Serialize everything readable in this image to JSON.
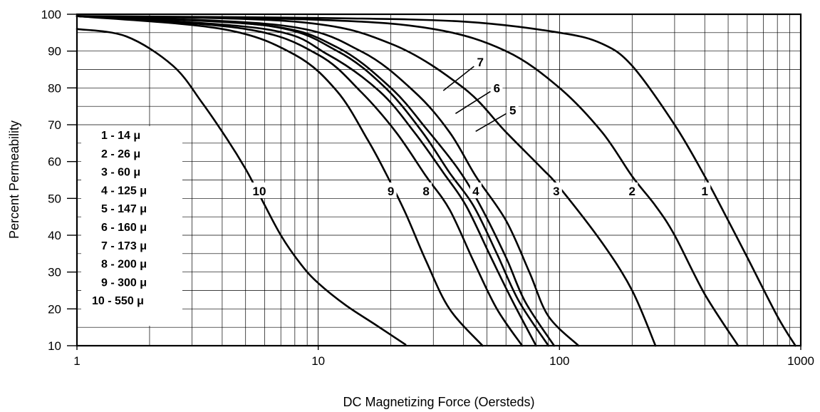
{
  "chart_data": {
    "type": "line",
    "title": "",
    "xlabel": "DC Magnetizing Force (Oersteds)",
    "ylabel": "Percent Permeability",
    "x_scale": "log",
    "xlim": [
      1,
      1000
    ],
    "ylim": [
      10,
      100
    ],
    "x_ticks": [
      "1",
      "10",
      "100",
      "1000"
    ],
    "y_ticks": [
      "10",
      "20",
      "30",
      "40",
      "50",
      "60",
      "70",
      "80",
      "90",
      "100"
    ],
    "grid": true,
    "legend_position": "left",
    "legend": [
      {
        "id": "1",
        "text": "1 - 14 μ"
      },
      {
        "id": "2",
        "text": "2 - 26 μ"
      },
      {
        "id": "3",
        "text": "3 - 60 μ"
      },
      {
        "id": "4",
        "text": "4 - 125 μ"
      },
      {
        "id": "5",
        "text": "5 - 147 μ"
      },
      {
        "id": "6",
        "text": "6 - 160 μ"
      },
      {
        "id": "7",
        "text": "7 - 173 μ"
      },
      {
        "id": "8",
        "text": "8 - 200 μ"
      },
      {
        "id": "9",
        "text": "9 - 300 μ"
      },
      {
        "id": "10",
        "text": "10 - 550 μ"
      }
    ],
    "series": [
      {
        "name": "1",
        "points": [
          [
            1,
            99.5
          ],
          [
            10,
            99
          ],
          [
            40,
            98
          ],
          [
            100,
            95
          ],
          [
            150,
            92
          ],
          [
            200,
            86
          ],
          [
            300,
            70
          ],
          [
            400,
            56
          ],
          [
            500,
            44
          ],
          [
            600,
            34
          ],
          [
            800,
            18
          ],
          [
            950,
            10
          ]
        ]
      },
      {
        "name": "2",
        "points": [
          [
            1,
            99.5
          ],
          [
            10,
            98.5
          ],
          [
            30,
            96
          ],
          [
            60,
            90
          ],
          [
            100,
            80
          ],
          [
            150,
            68
          ],
          [
            200,
            56
          ],
          [
            250,
            48
          ],
          [
            300,
            40
          ],
          [
            400,
            24
          ],
          [
            550,
            10
          ]
        ]
      },
      {
        "name": "3",
        "points": [
          [
            1,
            99.5
          ],
          [
            8,
            98
          ],
          [
            20,
            92
          ],
          [
            40,
            80
          ],
          [
            60,
            68
          ],
          [
            85,
            58
          ],
          [
            100,
            53
          ],
          [
            150,
            38
          ],
          [
            200,
            25
          ],
          [
            250,
            10
          ]
        ]
      },
      {
        "name": "4",
        "points": [
          [
            1,
            99.5
          ],
          [
            7,
            97
          ],
          [
            15,
            90
          ],
          [
            25,
            79
          ],
          [
            35,
            68
          ],
          [
            45,
            56
          ],
          [
            60,
            44
          ],
          [
            75,
            30
          ],
          [
            90,
            18
          ],
          [
            120,
            10
          ]
        ]
      },
      {
        "name": "5",
        "points": [
          [
            1,
            99.5
          ],
          [
            6,
            97
          ],
          [
            12,
            91
          ],
          [
            20,
            80
          ],
          [
            28,
            69
          ],
          [
            38,
            58
          ],
          [
            47,
            48
          ],
          [
            60,
            34
          ],
          [
            72,
            22
          ],
          [
            95,
            10
          ]
        ]
      },
      {
        "name": "6",
        "points": [
          [
            1,
            99.5
          ],
          [
            6,
            97
          ],
          [
            12,
            90
          ],
          [
            19,
            80
          ],
          [
            27,
            68
          ],
          [
            35,
            57
          ],
          [
            44,
            48
          ],
          [
            55,
            35
          ],
          [
            68,
            22
          ],
          [
            90,
            10
          ]
        ]
      },
      {
        "name": "7",
        "points": [
          [
            1,
            99.5
          ],
          [
            6,
            96
          ],
          [
            11,
            89
          ],
          [
            18,
            79
          ],
          [
            25,
            68
          ],
          [
            33,
            57
          ],
          [
            41,
            48
          ],
          [
            52,
            34
          ],
          [
            64,
            22
          ],
          [
            80,
            10
          ]
        ]
      },
      {
        "name": "8",
        "points": [
          [
            1,
            99.5
          ],
          [
            5,
            96
          ],
          [
            10,
            89
          ],
          [
            15,
            79
          ],
          [
            21,
            68
          ],
          [
            28,
            56
          ],
          [
            35,
            47
          ],
          [
            44,
            33
          ],
          [
            55,
            20
          ],
          [
            70,
            10
          ]
        ]
      },
      {
        "name": "9",
        "points": [
          [
            1,
            99.5
          ],
          [
            4,
            96
          ],
          [
            8,
            89
          ],
          [
            12,
            79
          ],
          [
            16,
            66
          ],
          [
            19,
            57
          ],
          [
            23,
            46
          ],
          [
            28,
            33
          ],
          [
            35,
            20
          ],
          [
            48,
            10
          ]
        ]
      },
      {
        "name": "10",
        "points": [
          [
            1,
            96
          ],
          [
            1.6,
            94
          ],
          [
            2.5,
            86
          ],
          [
            3.3,
            76
          ],
          [
            4.2,
            66
          ],
          [
            5,
            58
          ],
          [
            5.7,
            51
          ],
          [
            7,
            40
          ],
          [
            8.5,
            32
          ],
          [
            10,
            27
          ],
          [
            13,
            21
          ],
          [
            17,
            16
          ],
          [
            23,
            10.3
          ]
        ]
      }
    ],
    "curve_labels": [
      {
        "text": "1",
        "x": 400,
        "y": 52
      },
      {
        "text": "2",
        "x": 200,
        "y": 52
      },
      {
        "text": "3",
        "x": 97,
        "y": 52
      },
      {
        "text": "4",
        "x": 45,
        "y": 52
      },
      {
        "text": "5",
        "x": 64,
        "y": 74
      },
      {
        "text": "6",
        "x": 55,
        "y": 80
      },
      {
        "text": "7",
        "x": 47,
        "y": 87
      },
      {
        "text": "8",
        "x": 28,
        "y": 52
      },
      {
        "text": "9",
        "x": 20,
        "y": 52
      },
      {
        "text": "10",
        "x": 5.7,
        "y": 52
      }
    ]
  }
}
